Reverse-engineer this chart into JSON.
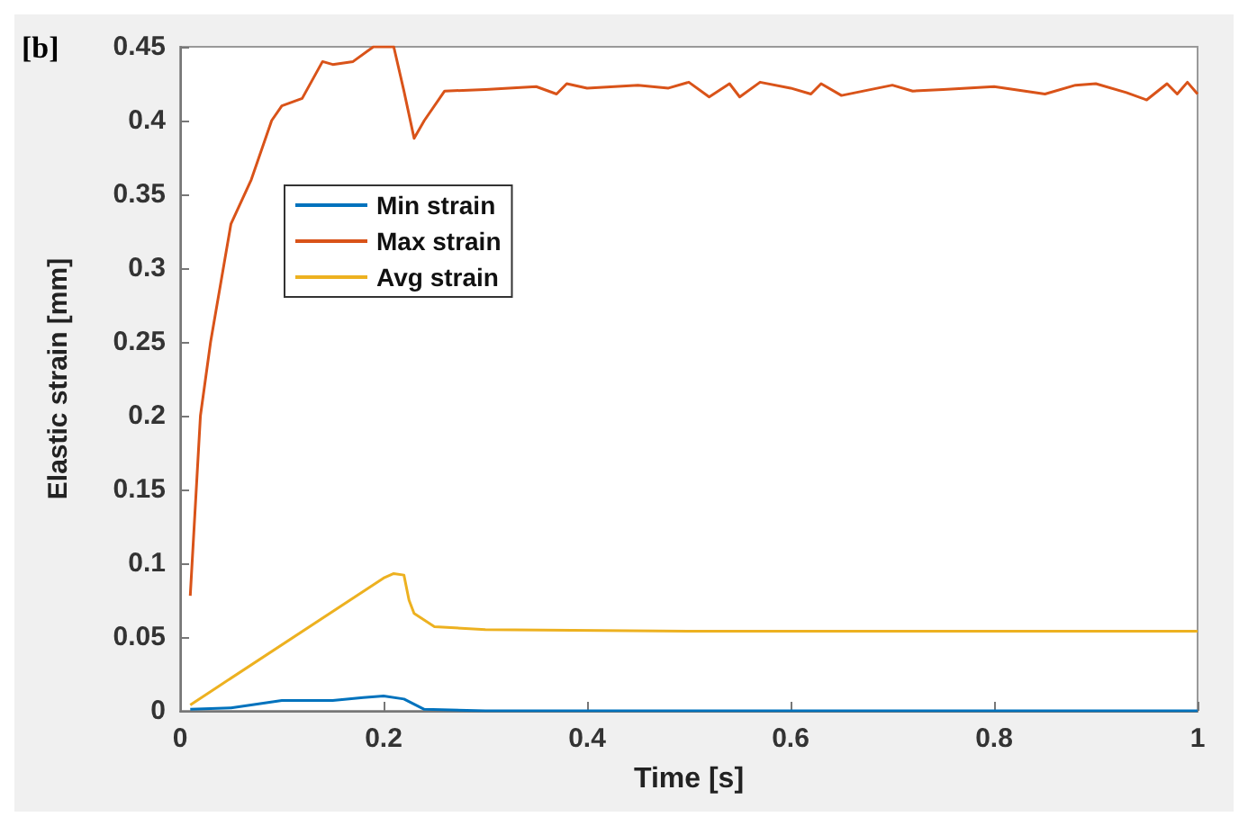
{
  "chart_data": {
    "type": "line",
    "xlabel": "Time [s]",
    "ylabel": "Elastic strain [mm]",
    "annotations": [
      "[b]"
    ],
    "xlim": [
      0,
      1
    ],
    "xticks": [
      0,
      0.2,
      0.4,
      0.6,
      0.8,
      1
    ],
    "ylim": [
      0,
      0.45
    ],
    "yticks": [
      0,
      0.05,
      0.1,
      0.15,
      0.2,
      0.25,
      0.3,
      0.35,
      0.4,
      0.45
    ],
    "grid": false,
    "legend": "top left",
    "marker": "none",
    "line_style": "solid",
    "series": [
      {
        "name": "Min strain",
        "color": "#0072bd",
        "x": [
          0.01,
          0.05,
          0.1,
          0.15,
          0.18,
          0.2,
          0.22,
          0.24,
          0.3,
          0.5,
          1.0
        ],
        "values": [
          0.001,
          0.002,
          0.007,
          0.007,
          0.009,
          0.01,
          0.008,
          0.001,
          0,
          0,
          0
        ]
      },
      {
        "name": "Max strain",
        "color": "#d95319",
        "x": [
          0.01,
          0.02,
          0.03,
          0.05,
          0.07,
          0.09,
          0.1,
          0.12,
          0.14,
          0.15,
          0.17,
          0.19,
          0.21,
          0.22,
          0.23,
          0.24,
          0.26,
          0.3,
          0.35,
          0.37,
          0.38,
          0.4,
          0.45,
          0.48,
          0.5,
          0.52,
          0.54,
          0.55,
          0.57,
          0.6,
          0.62,
          0.63,
          0.65,
          0.7,
          0.72,
          0.75,
          0.8,
          0.85,
          0.88,
          0.9,
          0.93,
          0.95,
          0.97,
          0.98,
          0.99,
          1.0
        ],
        "values": [
          0.078,
          0.2,
          0.25,
          0.33,
          0.36,
          0.4,
          0.41,
          0.415,
          0.44,
          0.438,
          0.44,
          0.45,
          0.45,
          0.42,
          0.388,
          0.4,
          0.42,
          0.421,
          0.423,
          0.418,
          0.425,
          0.422,
          0.424,
          0.422,
          0.426,
          0.416,
          0.425,
          0.416,
          0.426,
          0.422,
          0.418,
          0.425,
          0.417,
          0.424,
          0.42,
          0.421,
          0.423,
          0.418,
          0.424,
          0.425,
          0.419,
          0.414,
          0.425,
          0.418,
          0.426,
          0.418
        ]
      },
      {
        "name": "Avg strain",
        "color": "#edb120",
        "x": [
          0.01,
          0.2,
          0.21,
          0.22,
          0.225,
          0.23,
          0.25,
          0.3,
          0.5,
          1.0
        ],
        "values": [
          0.004,
          0.09,
          0.093,
          0.092,
          0.075,
          0.066,
          0.057,
          0.055,
          0.054,
          0.054
        ]
      }
    ]
  }
}
